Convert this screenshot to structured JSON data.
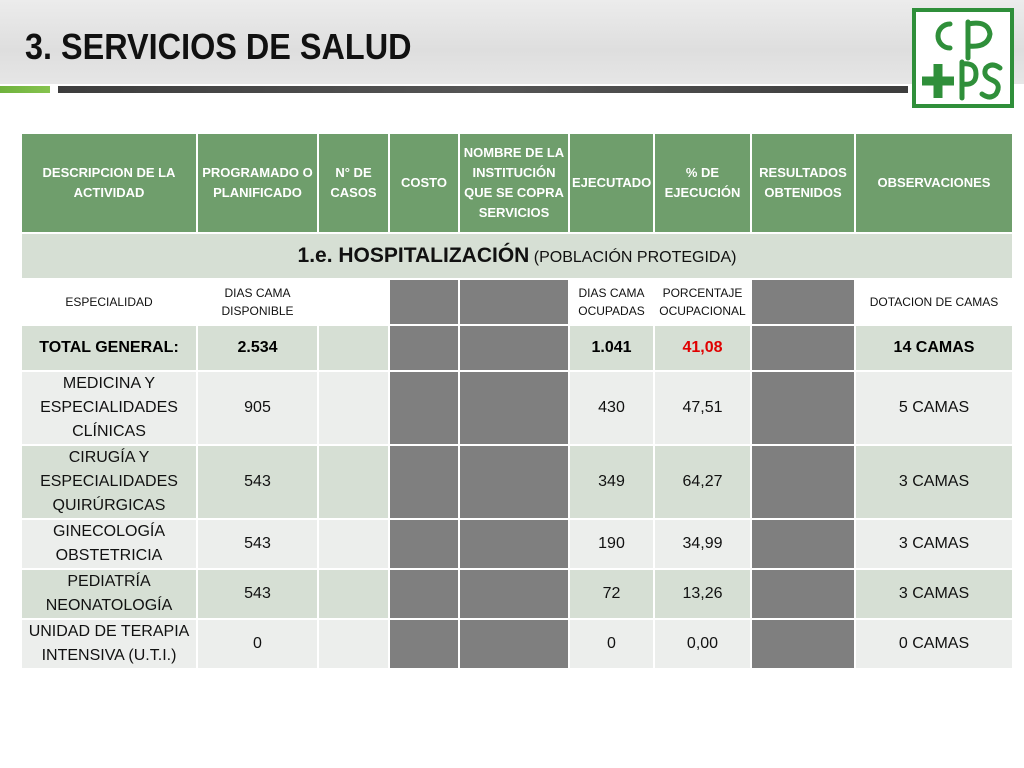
{
  "slide": {
    "title": "3. SERVICIOS DE SALUD"
  },
  "table": {
    "headers": [
      "DESCRIPCION DE LA ACTIVIDAD",
      "PROGRAMADO O PLANIFICADO",
      "N° DE CASOS",
      "COSTO",
      "NOMBRE DE LA INSTITUCIÓN QUE SE COPRA SERVICIOS",
      "EJECUTADO",
      "% DE EJECUCIÓN",
      "RESULTADOS OBTENIDOS",
      "OBSERVACIONES"
    ],
    "section": {
      "title": "1.e. HOSPITALIZACIÓN",
      "subtitle": "(POBLACIÓN PROTEGIDA)"
    },
    "subheader": {
      "especialidad": "ESPECIALIDAD",
      "dias_disponible": "DIAS CAMA DISPONIBLE",
      "dias_ocupadas": "DIAS CAMA OCUPADAS",
      "porcentaje": "PORCENTAJE OCUPACIONAL",
      "dotacion": "DOTACION DE CAMAS"
    },
    "total": {
      "label": "TOTAL GENERAL:",
      "disponible": "2.534",
      "ocupadas": "1.041",
      "porcentaje": "41,08",
      "camas": "14 CAMAS"
    },
    "rows": [
      {
        "name": "MEDICINA Y ESPECIALIDADES CLÍNICAS",
        "disponible": "905",
        "ocupadas": "430",
        "porcentaje": "47,51",
        "camas": "5 CAMAS"
      },
      {
        "name": "CIRUGÍA Y ESPECIALIDADES QUIRÚRGICAS",
        "disponible": "543",
        "ocupadas": "349",
        "porcentaje": "64,27",
        "camas": "3 CAMAS"
      },
      {
        "name": "GINECOLOGÍA OBSTETRICIA",
        "disponible": "543",
        "ocupadas": "190",
        "porcentaje": "34,99",
        "camas": "3 CAMAS"
      },
      {
        "name": "PEDIATRÍA NEONATOLOGÍA",
        "disponible": "543",
        "ocupadas": "72",
        "porcentaje": "13,26",
        "camas": "3 CAMAS"
      },
      {
        "name": "UNIDAD DE TERAPIA INTENSIVA (U.T.I.)",
        "disponible": "0",
        "ocupadas": "0",
        "porcentaje": "0,00",
        "camas": "0 CAMAS"
      }
    ]
  },
  "colors": {
    "header_green": "#6f9e6c",
    "row_tint": "#d6dfd4",
    "row_light": "#eceeec",
    "filler_gray": "#7f7f7f",
    "highlight_red": "#e00000",
    "logo_green": "#2f8f3a",
    "accent_green": "#6fb23d"
  },
  "logo": {
    "icon": "cpps-logo-icon"
  }
}
